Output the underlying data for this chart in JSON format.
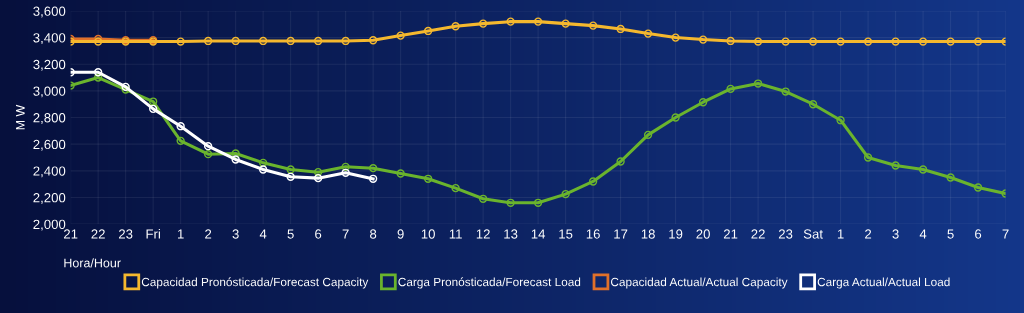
{
  "chart_data": {
    "type": "line",
    "xlabel": "Hora/Hour",
    "ylabel": "M W",
    "categories": [
      "21",
      "22",
      "23",
      "Fri",
      "1",
      "2",
      "3",
      "4",
      "5",
      "6",
      "7",
      "8",
      "9",
      "10",
      "11",
      "12",
      "13",
      "14",
      "15",
      "16",
      "17",
      "18",
      "19",
      "20",
      "21",
      "22",
      "23",
      "Sat",
      "1",
      "2",
      "3",
      "4",
      "5",
      "6",
      "7"
    ],
    "series": [
      {
        "name": "Capacidad Pronósticada/Forecast Capacity",
        "color": "#f5b82e",
        "values": [
          3370,
          3370,
          3370,
          3370,
          3370,
          3375,
          3375,
          3375,
          3375,
          3375,
          3375,
          3380,
          3415,
          3450,
          3485,
          3505,
          3520,
          3520,
          3505,
          3490,
          3465,
          3430,
          3400,
          3385,
          3375,
          3370,
          3370,
          3370,
          3370,
          3370,
          3370,
          3370,
          3370,
          3370,
          3370
        ]
      },
      {
        "name": "Carga Pronósticada/Forecast Load",
        "color": "#6ab42d",
        "values": [
          3040,
          3100,
          3010,
          2920,
          2625,
          2525,
          2530,
          2460,
          2410,
          2390,
          2430,
          2420,
          2380,
          2340,
          2270,
          2190,
          2160,
          2160,
          2225,
          2320,
          2470,
          2670,
          2800,
          2915,
          3015,
          3055,
          2995,
          2900,
          2780,
          2500,
          2440,
          2410,
          2350,
          2275,
          2230
        ]
      },
      {
        "name": "Capacidad Actual/Actual Capacity",
        "color": "#e0702a",
        "values": [
          3390,
          3390,
          3380,
          3380,
          null,
          null,
          null,
          null,
          null,
          null,
          null,
          null,
          null,
          null,
          null,
          null,
          null,
          null,
          null,
          null,
          null,
          null,
          null,
          null,
          null,
          null,
          null,
          null,
          null,
          null,
          null,
          null,
          null,
          null,
          null
        ]
      },
      {
        "name": "Carga Actual/Actual Load",
        "color": "#ffffff",
        "values": [
          3140,
          3140,
          3030,
          2865,
          2735,
          2585,
          2485,
          2410,
          2355,
          2345,
          2385,
          2340,
          null,
          null,
          null,
          null,
          null,
          null,
          null,
          null,
          null,
          null,
          null,
          null,
          null,
          null,
          null,
          null,
          null,
          null,
          null,
          null,
          null,
          null,
          null
        ]
      }
    ],
    "ylim": [
      2000,
      3600
    ],
    "yticks": [
      {
        "value": 2000,
        "label": "2,000"
      },
      {
        "value": 2200,
        "label": "2,200"
      },
      {
        "value": 2400,
        "label": "2,400"
      },
      {
        "value": 2600,
        "label": "2,600"
      },
      {
        "value": 2800,
        "label": "2,800"
      },
      {
        "value": 3000,
        "label": "3,000"
      },
      {
        "value": 3200,
        "label": "3,200"
      },
      {
        "value": 3400,
        "label": "3,400"
      },
      {
        "value": 3600,
        "label": "3,600"
      }
    ],
    "grid": true,
    "legend": "bottom",
    "marker": "circle",
    "line_style": "solid"
  }
}
